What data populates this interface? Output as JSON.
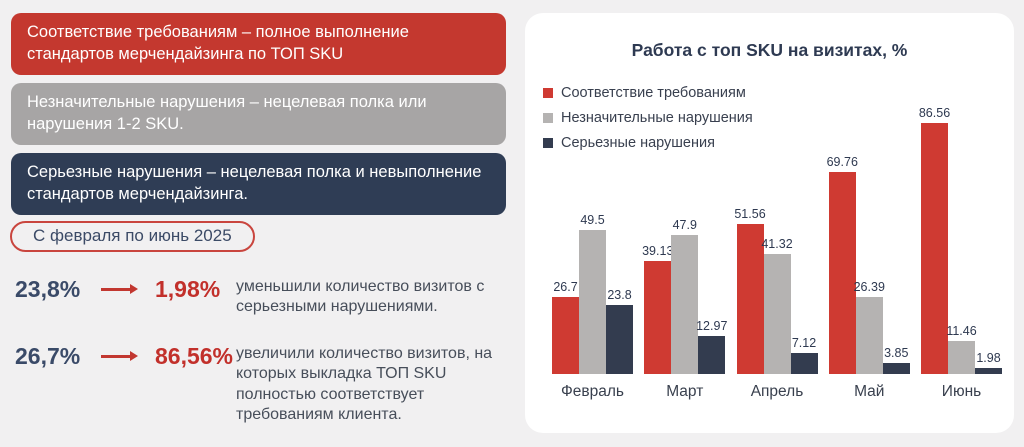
{
  "colors": {
    "banner_red": "#c4382f",
    "banner_gray": "#a7a5a5",
    "banner_navy": "#2f3d55",
    "stat_navy": "#3a4a68",
    "stat_red": "#c2302b",
    "pill_border_red": "#c9453e",
    "page_bg": "#f1f0f1",
    "card_bg": "#ffffff"
  },
  "definitions": [
    {
      "label": "Соответствие требованиям – полное выполнение стандартов мерчендайзинга по ТОП SKU"
    },
    {
      "label": "Незначительные нарушения – нецелевая полка или нарушения 1-2 SKU."
    },
    {
      "label": "Серьезные нарушения – нецелевая полка и невыполнение стандартов мерчендайзинга."
    }
  ],
  "period_pill": {
    "label": "С февраля по июнь 2025"
  },
  "stats": [
    {
      "from": "23,8%",
      "to": "1,98%",
      "description": "уменьшили количество визитов с серьезными нарушениями."
    },
    {
      "from": "26,7%",
      "to": "86,56%",
      "description": "увеличили количество визитов, на которых выкладка ТОП SKU полностью соответствует требованиям клиента."
    }
  ],
  "chart_data": {
    "type": "bar",
    "title": "Работа с топ SKU на визитах, %",
    "xlabel": "",
    "ylabel": "",
    "categories": [
      "Февраль",
      "Март",
      "Апрель",
      "Май",
      "Июнь"
    ],
    "series": [
      {
        "name": "Соответствие требованиям",
        "color": "#cf3a32",
        "values": [
          26.7,
          39.13,
          51.56,
          69.76,
          86.56
        ],
        "labels": [
          "26.7",
          "39.13",
          "51.56",
          "69.76",
          "86.56"
        ]
      },
      {
        "name": "Незначительные нарушения",
        "color": "#b5b3b2",
        "values": [
          49.5,
          47.9,
          41.32,
          26.39,
          11.46
        ],
        "labels": [
          "49.5",
          "47.9",
          "41.32",
          "26.39",
          "11.46"
        ]
      },
      {
        "name": "Серьезные нарушения",
        "color": "#333c4f",
        "values": [
          23.8,
          12.97,
          7.12,
          3.85,
          1.98
        ],
        "labels": [
          "23.8",
          "12.97",
          "7.12",
          "3.85",
          "1.98"
        ]
      }
    ],
    "ylim": [
      0,
      100
    ],
    "grid": false,
    "legend_position": "top-left",
    "value_labels": true
  }
}
